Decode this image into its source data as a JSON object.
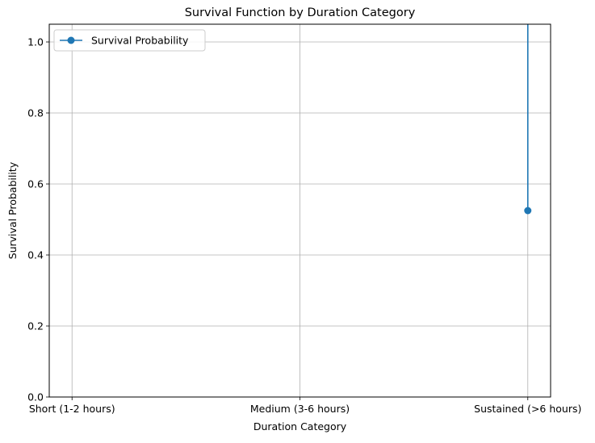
{
  "chart_data": {
    "type": "line",
    "title": "Survival Function by Duration Category",
    "xlabel": "Duration Category",
    "ylabel": "Survival Probability",
    "categories": [
      "Short (1-2 hours)",
      "Medium (3-6 hours)",
      "Sustained (>6 hours)"
    ],
    "ylim": [
      0,
      1.05
    ],
    "yticks": [
      0.0,
      0.2,
      0.4,
      0.6,
      0.8,
      1.0
    ],
    "ytick_labels": [
      "0.0",
      "0.2",
      "0.4",
      "0.6",
      "0.8",
      "1.0"
    ],
    "grid": true,
    "legend_position": "top-left",
    "series": [
      {
        "name": "Survival Probability",
        "color": "#1f77b4",
        "marker": "circle",
        "points": [
          {
            "category": "Sustained (>6 hours)",
            "value": 1.05
          },
          {
            "category": "Sustained (>6 hours)",
            "value": 0.525
          }
        ]
      }
    ]
  }
}
